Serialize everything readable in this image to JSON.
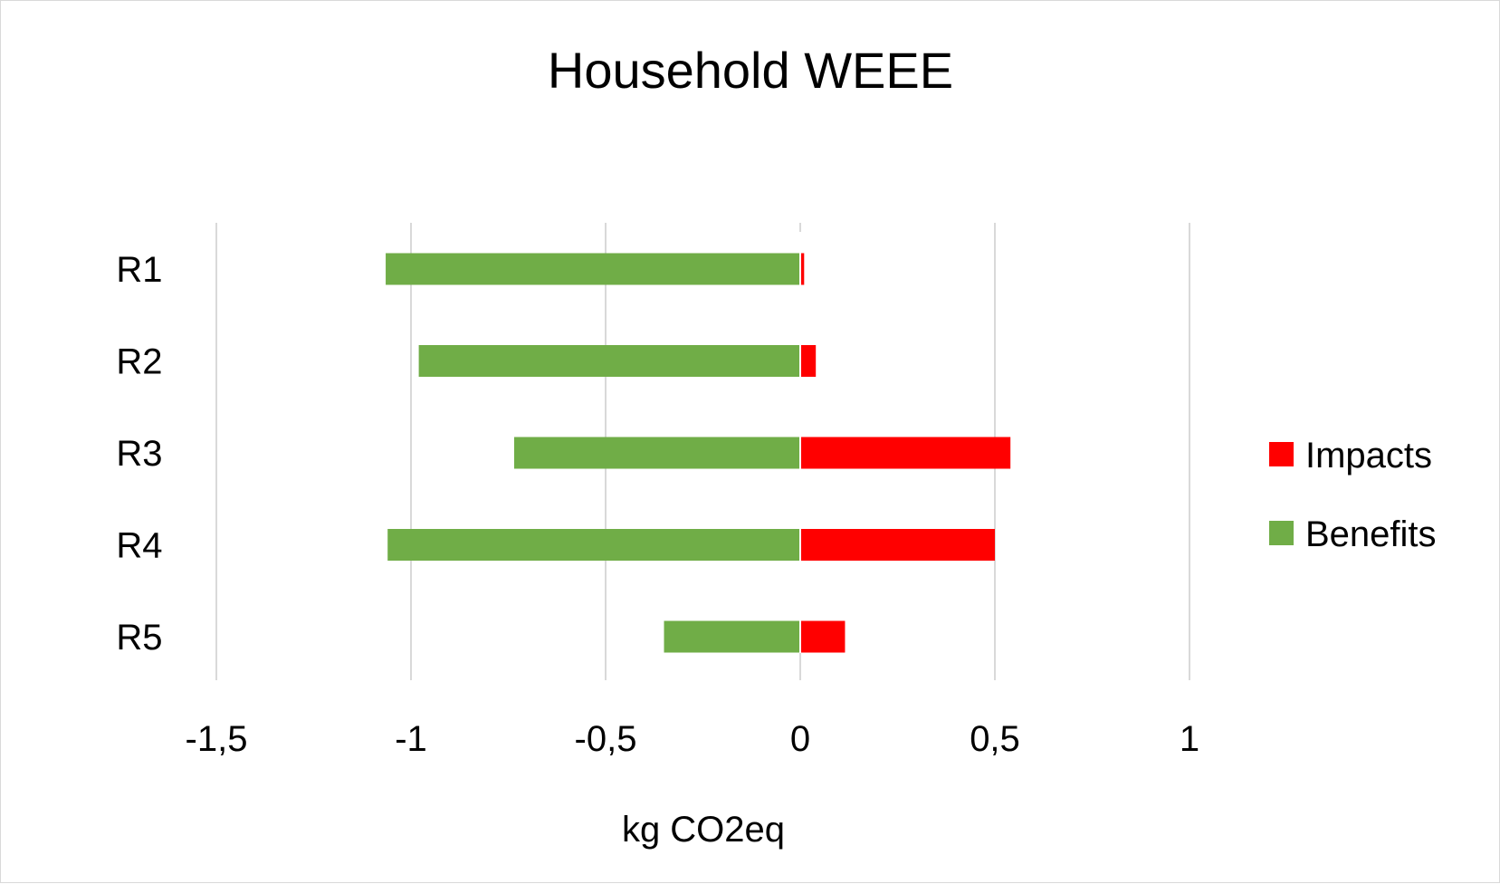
{
  "chart_data": {
    "type": "bar",
    "orientation": "horizontal",
    "stacked": true,
    "title": "Household WEEE",
    "xlabel": "kg CO2eq",
    "ylabel": "",
    "categories": [
      "R1",
      "R2",
      "R3",
      "R4",
      "R5"
    ],
    "series": [
      {
        "name": "Impacts",
        "color": "#ff0000",
        "values": [
          0.01,
          0.04,
          0.54,
          0.5,
          0.115
        ]
      },
      {
        "name": "Benefits",
        "color": "#70ad47",
        "values": [
          -1.065,
          -0.98,
          -0.735,
          -1.06,
          -0.35
        ]
      }
    ],
    "xlim": [
      -1.5,
      1
    ],
    "x_ticks": [
      -1.5,
      -1,
      -0.5,
      0,
      0.5,
      1
    ],
    "x_tick_labels": [
      "-1,5",
      "-1",
      "-0,5",
      "0",
      "0,5",
      "1"
    ],
    "grid": "vertical",
    "grid_color": "#d9d9d9",
    "legend_position": "right",
    "legend_order": [
      "Impacts",
      "Benefits"
    ]
  }
}
